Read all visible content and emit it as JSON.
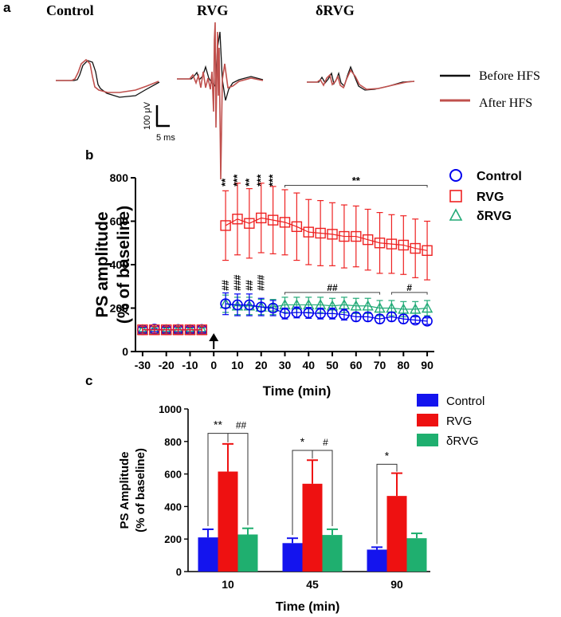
{
  "panels": {
    "a": {
      "label": "a",
      "trace_titles": [
        "Control",
        "RVG",
        "δRVG"
      ],
      "legend": [
        {
          "label": "Before HFS",
          "color": "#111111"
        },
        {
          "label": "After HFS",
          "color": "#c0504d"
        }
      ],
      "scale_bar": {
        "vertical": "100 μV",
        "horizontal": "5 ms"
      }
    },
    "b": {
      "label": "b"
    },
    "c": {
      "label": "c"
    }
  },
  "chart_data": [
    {
      "type": "line",
      "panel": "b",
      "title": "",
      "xlabel": "Time (min)",
      "ylabel_lines": [
        "PS amplitude",
        "(% of baseline)"
      ],
      "xlim": [
        -33,
        93
      ],
      "ylim": [
        0,
        800
      ],
      "xticks": [
        -30,
        -20,
        -10,
        0,
        10,
        20,
        30,
        40,
        50,
        60,
        70,
        80,
        90
      ],
      "yticks": [
        0,
        200,
        400,
        600,
        800
      ],
      "tick_labels_x": [
        "-30",
        "-20",
        "-10",
        "0",
        "10",
        "20",
        "30",
        "40",
        "50",
        "60",
        "70",
        "80",
        "90"
      ],
      "tick_labels_y": [
        "0",
        "200",
        "400",
        "600",
        "800"
      ],
      "hfs_time": 0,
      "baseline_x": [
        -30,
        -25,
        -20,
        -15,
        -10,
        -5
      ],
      "x": [
        5,
        10,
        15,
        20,
        25,
        30,
        35,
        40,
        45,
        50,
        55,
        60,
        65,
        70,
        75,
        80,
        85,
        90
      ],
      "series": [
        {
          "name": "Control",
          "color": "#0000ee",
          "marker": "circle",
          "baseline": [
            100,
            103,
            100,
            101,
            100,
            101
          ],
          "baseline_err": [
            12,
            12,
            12,
            12,
            12,
            12
          ],
          "values": [
            220,
            215,
            215,
            205,
            200,
            175,
            180,
            178,
            175,
            175,
            170,
            160,
            160,
            150,
            160,
            150,
            145,
            140
          ],
          "errors": [
            50,
            50,
            50,
            40,
            35,
            25,
            25,
            25,
            25,
            25,
            25,
            20,
            20,
            20,
            20,
            20,
            15,
            15
          ]
        },
        {
          "name": "RVG",
          "color": "#ee2222",
          "marker": "square",
          "baseline": [
            100,
            100,
            100,
            100,
            100,
            100
          ],
          "baseline_err": [
            15,
            15,
            15,
            15,
            15,
            15
          ],
          "values": [
            580,
            610,
            590,
            615,
            605,
            595,
            575,
            550,
            545,
            540,
            530,
            530,
            515,
            500,
            495,
            490,
            475,
            465
          ],
          "errors": [
            160,
            165,
            160,
            160,
            155,
            150,
            155,
            150,
            150,
            145,
            145,
            140,
            140,
            140,
            135,
            135,
            135,
            135
          ]
        },
        {
          "name": "δRVG",
          "color": "#22aa77",
          "marker": "triangle",
          "baseline": [
            100,
            100,
            100,
            100,
            100,
            100
          ],
          "baseline_err": [
            8,
            8,
            8,
            8,
            8,
            8
          ],
          "values": [
            220,
            210,
            210,
            205,
            205,
            215,
            215,
            215,
            215,
            210,
            215,
            210,
            210,
            200,
            200,
            195,
            195,
            200
          ],
          "errors": [
            40,
            40,
            40,
            35,
            35,
            35,
            35,
            35,
            35,
            35,
            35,
            35,
            35,
            35,
            35,
            35,
            35,
            35
          ]
        }
      ],
      "annotations": {
        "rvg_single": [
          {
            "x": 5,
            "text": "**"
          },
          {
            "x": 10,
            "text": "***"
          },
          {
            "x": 15,
            "text": "**"
          },
          {
            "x": 20,
            "text": "***"
          },
          {
            "x": 25,
            "text": "***"
          }
        ],
        "rvg_bracket": {
          "from": 30,
          "to": 90,
          "text": "**"
        },
        "delta_single": [
          {
            "x": 5,
            "text": "##"
          },
          {
            "x": 10,
            "text": "###"
          },
          {
            "x": 15,
            "text": "##"
          },
          {
            "x": 20,
            "text": "###"
          }
        ],
        "delta_bracket1": {
          "from": 30,
          "to": 70,
          "text": "##"
        },
        "delta_bracket2": {
          "from": 75,
          "to": 90,
          "text": "#"
        }
      }
    },
    {
      "type": "bar",
      "panel": "c",
      "title": "",
      "xlabel": "Time (min)",
      "ylabel_lines": [
        "PS Amplitude",
        "(% of baseline)"
      ],
      "ylim": [
        0,
        1000
      ],
      "yticks": [
        0,
        200,
        400,
        600,
        800,
        1000
      ],
      "tick_labels_y": [
        "0",
        "200",
        "400",
        "600",
        "800",
        "1000"
      ],
      "categories": [
        "10",
        "45",
        "90"
      ],
      "series": [
        {
          "name": "Control",
          "color": "#1414ee",
          "values": [
            210,
            175,
            135
          ],
          "errors": [
            50,
            30,
            15
          ]
        },
        {
          "name": "RVG",
          "color": "#ee1111",
          "values": [
            615,
            540,
            465
          ],
          "errors": [
            170,
            145,
            140
          ]
        },
        {
          "name": "δRVG",
          "color": "#1faf6f",
          "values": [
            228,
            225,
            205
          ],
          "errors": [
            38,
            35,
            30
          ]
        }
      ],
      "significance": [
        {
          "category": 0,
          "left": "**",
          "right": "##"
        },
        {
          "category": 1,
          "left": "*",
          "right": "#"
        },
        {
          "category": 2,
          "left": "*",
          "right": ""
        }
      ]
    }
  ]
}
